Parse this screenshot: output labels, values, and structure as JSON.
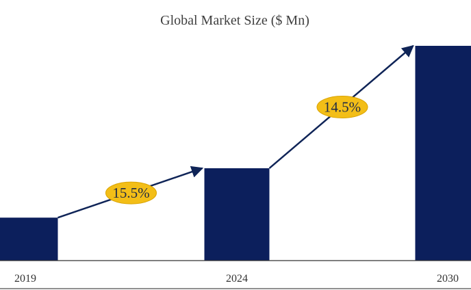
{
  "chart_data": {
    "type": "bar",
    "title": "Global Market Size ($ Mn)",
    "categories": [
      "2019",
      "2024",
      "2030"
    ],
    "values": [
      20,
      43,
      100
    ],
    "ylim": [
      0,
      100
    ],
    "xlabel": "",
    "ylabel": "",
    "grid": false,
    "annotations": [
      {
        "label": "15.5%",
        "from": "2019",
        "to": "2024"
      },
      {
        "label": "14.5%",
        "from": "2024",
        "to": "2030"
      }
    ]
  },
  "colors": {
    "bar": "#0c1f5c",
    "arrow": "#0f2457",
    "badge": "#f3be17",
    "badge_stroke": "#d9a300",
    "axis": "#333333",
    "title": "#3f3f3f"
  }
}
